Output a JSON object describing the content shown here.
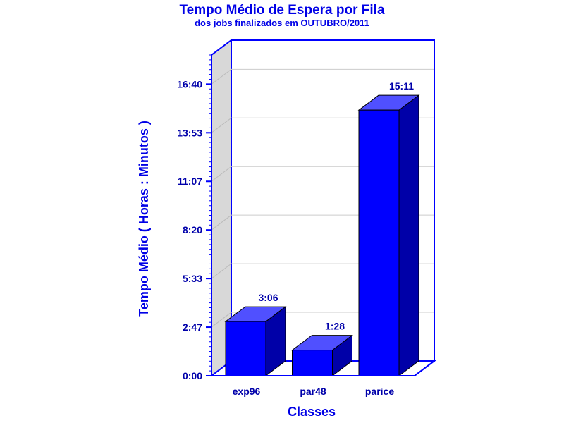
{
  "chart_data": {
    "type": "bar",
    "title": "Tempo Médio de Espera por Fila",
    "subtitle": "dos jobs finalizados em OUTUBRO/2011",
    "xlabel": "Classes",
    "ylabel": "Tempo Médio ( Horas : Minutos )",
    "categories": [
      "exp96",
      "par48",
      "parice"
    ],
    "values_minutes": [
      186,
      88,
      911
    ],
    "value_labels": [
      "3:06",
      "1:28",
      "15:11"
    ],
    "yticks": [
      "0:00",
      "2:47",
      "5:33",
      "8:20",
      "11:07",
      "13:53",
      "16:40"
    ],
    "ylim_minutes": [
      0,
      1000
    ],
    "grid": true,
    "style": "3d",
    "colors": {
      "bar_front": "#0000ff",
      "bar_top": "#5050ff",
      "bar_side": "#0000a8",
      "frame": "#0000ff",
      "back_wall": "#d8d8d8",
      "text": "#0000aa"
    }
  }
}
